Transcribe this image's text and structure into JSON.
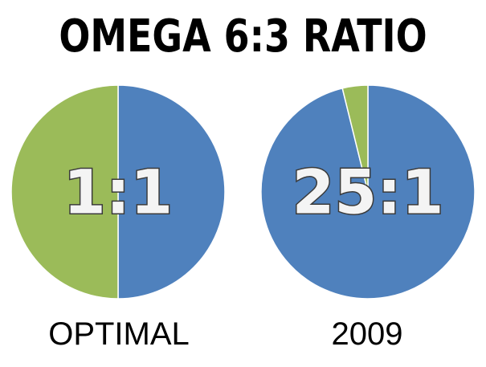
{
  "title": "OMEGA 6:3 RATIO",
  "colors": {
    "omega6": "#4f81bd",
    "omega3": "#9bbb59"
  },
  "chart_data": [
    {
      "type": "pie",
      "ratio_label": "1:1",
      "caption": "OPTIMAL",
      "slices": [
        {
          "value": 1,
          "color": "#4f81bd"
        },
        {
          "value": 1,
          "color": "#9bbb59"
        }
      ]
    },
    {
      "type": "pie",
      "ratio_label": "25:1",
      "caption": "2009",
      "slices": [
        {
          "value": 25,
          "color": "#4f81bd"
        },
        {
          "value": 1,
          "color": "#9bbb59"
        }
      ]
    }
  ]
}
